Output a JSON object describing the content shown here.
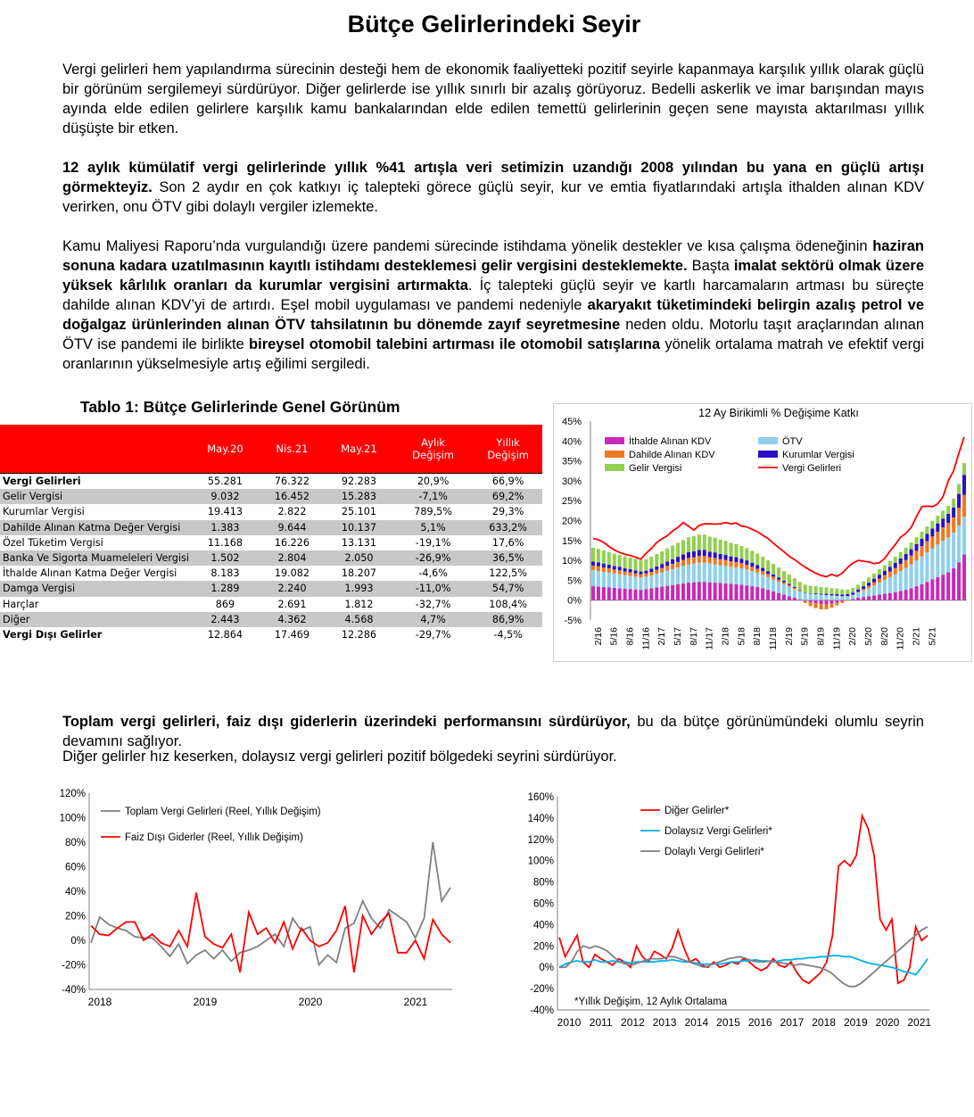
{
  "page_title": "Bütçe Gelirlerindeki Seyir",
  "paragraphs": {
    "p1": "Vergi gelirleri hem yapılandırma sürecinin desteği hem de ekonomik faaliyetteki pozitif seyirle kapanmaya karşılık yıllık olarak güçlü bir görünüm sergilemeyi sürdürüyor. Diğer gelirlerde ise yıllık sınırlı bir azalış görüyoruz. Bedelli askerlik ve imar barışından mayıs ayında elde edilen gelirlere karşılık kamu bankalarından elde edilen temettü gelirlerinin geçen sene mayısta aktarılması yıllık düşüşte bir etken.",
    "p2_bold": "12 aylık kümülatif vergi gelirlerinde yıllık %41 artışla veri setimizin uzandığı 2008 yılından bu yana en güçlü artışı görmekteyiz.",
    "p2_rest": " Son 2 aydır en çok katkıyı iç talepteki görece güçlü seyir, kur ve emtia fiyatlarındaki artışla ithalden alınan KDV verirken, onu ÖTV gibi dolaylı vergiler izlemekte.",
    "p3_a": "Kamu Maliyesi Raporu’nda vurgulandığı üzere pandemi sürecinde istihdama yönelik destekler ve kısa çalışma ödeneğinin ",
    "p3_b": "haziran sonuna kadara uzatılmasının kayıtlı istihdamı desteklemesi gelir vergisini desteklemekte.",
    "p3_c": " Başta ",
    "p3_d": "imalat sektörü olmak üzere yüksek kârlılık oranları da kurumlar vergisini artırmakta",
    "p3_e": ". İç talepteki güçlü seyir ve kartlı harcamaların artması bu süreçte dahilde alınan KDV’yi de artırdı. Eşel mobil uygulaması ve pandemi nedeniyle ",
    "p3_f": "akaryakıt tüketimindeki belirgin azalış petrol ve doğalgaz ürünlerinden alınan ÖTV tahsilatının bu dönemde zayıf seyretmesine",
    "p3_g": " neden oldu. Motorlu taşıt araçlarından alınan ÖTV ise pandemi ile birlikte ",
    "p3_h": "bireysel otomobil talebini artırması ile otomobil satışlarına",
    "p3_i": " yönelik ortalama matrah ve efektif vergi oranlarının yükselmesiyle artış eğilimi sergiledi.",
    "p4_bold": "Toplam vergi gelirleri, faiz dışı giderlerin üzerindeki performansını sürdürüyor,",
    "p4_rest": " bu da bütçe görünümündeki olumlu seyrin devamını sağlıyor.",
    "p5": "Diğer gelirler hız keserken, dolaysız vergi gelirleri pozitif bölgedeki seyrini sürdürüyor."
  },
  "table": {
    "title": "Tablo 1: Bütçe Gelirlerinde Genel Görünüm",
    "headers": [
      "",
      "May.20",
      "Nis.21",
      "May.21",
      "Aylık Değişim",
      "Yıllık Değişim"
    ],
    "rows": [
      [
        "Vergi Gelirleri",
        "55.281",
        "76.322",
        "92.283",
        "20,9%",
        "66,9%"
      ],
      [
        "Gelir Vergisi",
        "9.032",
        "16.452",
        "15.283",
        "-7,1%",
        "69,2%"
      ],
      [
        "Kurumlar Vergisi",
        "19.413",
        "2.822",
        "25.101",
        "789,5%",
        "29,3%"
      ],
      [
        "Dahilde Alınan Katma Değer Vergisi",
        "1.383",
        "9.644",
        "10.137",
        "5,1%",
        "633,2%"
      ],
      [
        "Özel Tüketim Vergisi",
        "11.168",
        "16.226",
        "13.131",
        "-19,1%",
        "17,6%"
      ],
      [
        "Banka Ve Sigorta Muameleleri Vergisi",
        "1.502",
        "2.804",
        "2.050",
        "-26,9%",
        "36,5%"
      ],
      [
        "İthalde Alınan Katma Değer Vergisi",
        "8.183",
        "19.082",
        "18.207",
        "-4,6%",
        "122,5%"
      ],
      [
        "Damga Vergisi",
        "1.289",
        "2.240",
        "1.993",
        "-11,0%",
        "54,7%"
      ],
      [
        "Harçlar",
        "869",
        "2.691",
        "1.812",
        "-32,7%",
        "108,4%"
      ],
      [
        "Diğer",
        "2.443",
        "4.362",
        "4.568",
        "4,7%",
        "86,9%"
      ],
      [
        "Vergi Dışı Gelirler",
        "12.864",
        "17.469",
        "12.286",
        "-29,7%",
        "-4,5%"
      ]
    ]
  },
  "chart_data": [
    {
      "type": "bar",
      "title": "12 Ay Birikimli % Değişime Katkı",
      "ylim": [
        -5,
        45
      ],
      "ytick_labels": [
        "45%",
        "40%",
        "35%",
        "30%",
        "25%",
        "20%",
        "15%",
        "10%",
        "5%",
        "0%",
        "-5%"
      ],
      "xtick_labels": [
        "2/16",
        "5/16",
        "8/16",
        "11/16",
        "2/17",
        "5/17",
        "8/17",
        "11/17",
        "2/18",
        "5/18",
        "8/18",
        "11/18",
        "2/19",
        "5/19",
        "8/19",
        "11/19",
        "2/20",
        "5/20",
        "8/20",
        "11/20",
        "2/21",
        "5/21"
      ],
      "legend": [
        "İthalde Alınan KDV",
        "ÖTV",
        "Dahilde Alınan KDV",
        "Kurumlar Vergisi",
        "Gelir Vergisi",
        "Vergi Gelirleri"
      ],
      "series": [
        {
          "name": "İthalde Alınan KDV",
          "color": "#c72ab8",
          "values": [
            3.5,
            3.4,
            3.3,
            3.2,
            3.1,
            3,
            2.9,
            2.8,
            2.7,
            2.6,
            2.8,
            3,
            3.2,
            3.4,
            3.6,
            3.8,
            4,
            4.2,
            4.4,
            4.5,
            4.6,
            4.6,
            4.5,
            4.4,
            4.3,
            4.2,
            4.1,
            4,
            3.9,
            3.7,
            3.5,
            3.3,
            3,
            2.6,
            2.2,
            1.8,
            1.4,
            1,
            0.6,
            0.2,
            -0.2,
            -0.5,
            -0.8,
            -1,
            -1.1,
            -0.9,
            -0.6,
            -0.3,
            0,
            0.3,
            0.6,
            0.8,
            1,
            1.2,
            1.4,
            1.6,
            1.8,
            2,
            2.3,
            2.6,
            3,
            3.5,
            4,
            4.6,
            5.2,
            5.8,
            6.4,
            7,
            8,
            9.5,
            11.5
          ]
        },
        {
          "name": "ÖTV",
          "color": "#8fd0ec",
          "values": [
            4,
            3.9,
            3.8,
            3.7,
            3.6,
            3.5,
            3.4,
            3.3,
            3.2,
            3.1,
            3.1,
            3.2,
            3.4,
            3.6,
            3.8,
            4,
            4.2,
            4.4,
            4.6,
            4.7,
            4.8,
            4.8,
            4.7,
            4.6,
            4.5,
            4.4,
            4.3,
            4.2,
            4.1,
            4,
            3.8,
            3.6,
            3.4,
            3.2,
            3,
            2.8,
            2.6,
            2.4,
            2.2,
            2,
            1.8,
            1.6,
            1.5,
            1.4,
            1.3,
            1.2,
            1.1,
            1,
            1,
            1.1,
            1.3,
            1.6,
            2,
            2.5,
            3,
            3.5,
            4,
            4.5,
            5,
            5.5,
            6,
            6.5,
            7,
            7.4,
            7.8,
            8.2,
            8.5,
            8.8,
            9,
            9.2,
            9.5
          ]
        },
        {
          "name": "Dahilde Alınan KDV",
          "color": "#f07820",
          "values": [
            1.2,
            1.2,
            1.1,
            1.1,
            1,
            1,
            0.9,
            0.9,
            0.8,
            0.8,
            0.8,
            0.9,
            1,
            1.1,
            1.2,
            1.3,
            1.4,
            1.5,
            1.6,
            1.6,
            1.7,
            1.7,
            1.6,
            1.6,
            1.5,
            1.5,
            1.4,
            1.4,
            1.3,
            1.2,
            1.1,
            1,
            0.9,
            0.8,
            0.7,
            0.6,
            0.5,
            0.4,
            0.3,
            0.2,
            -0.5,
            -1,
            -1.2,
            -1.3,
            -1.2,
            -1,
            -0.7,
            -0.4,
            -0.2,
            0,
            0.2,
            0.4,
            0.6,
            0.8,
            1,
            1.2,
            1.4,
            1.6,
            1.8,
            2,
            2.2,
            2.4,
            2.6,
            2.8,
            3,
            3.2,
            3.4,
            3.6,
            3.8,
            4.5,
            5.5
          ]
        },
        {
          "name": "Kurumlar Vergisi",
          "color": "#2a10c8",
          "values": [
            1,
            1,
            1,
            0.9,
            0.9,
            0.9,
            0.8,
            0.8,
            0.8,
            0.7,
            0.7,
            0.8,
            0.9,
            1,
            1.1,
            1.2,
            1.3,
            1.4,
            1.5,
            1.5,
            1.5,
            1.5,
            1.4,
            1.4,
            1.3,
            1.3,
            1.2,
            1.2,
            1.1,
            1.1,
            1,
            0.9,
            0.8,
            0.7,
            0.6,
            0.5,
            0.4,
            0.3,
            0.2,
            0.1,
            0.1,
            0.1,
            0.2,
            0.2,
            0.3,
            0.3,
            0.4,
            0.4,
            0.5,
            0.5,
            0.6,
            0.7,
            0.8,
            0.9,
            1,
            1.1,
            1.2,
            1.3,
            1.4,
            1.5,
            1.6,
            1.7,
            1.8,
            1.9,
            2,
            2.1,
            2.2,
            2.3,
            2.5,
            3.5,
            5
          ]
        },
        {
          "name": "Gelir Vergisi",
          "color": "#92d050",
          "values": [
            3.5,
            3.4,
            3.3,
            3.2,
            3.1,
            3,
            3,
            2.9,
            2.9,
            2.8,
            2.9,
            3,
            3.1,
            3.2,
            3.3,
            3.4,
            3.5,
            3.6,
            3.7,
            3.8,
            3.9,
            3.9,
            3.8,
            3.7,
            3.6,
            3.5,
            3.4,
            3.3,
            3.2,
            3.1,
            3,
            2.9,
            2.8,
            2.7,
            2.6,
            2.5,
            2.4,
            2.3,
            2.2,
            2.1,
            2,
            1.9,
            1.8,
            1.7,
            1.6,
            1.5,
            1.4,
            1.3,
            1.2,
            1.2,
            1.2,
            1.2,
            1.3,
            1.3,
            1.4,
            1.4,
            1.5,
            1.5,
            1.6,
            1.6,
            1.7,
            1.7,
            1.8,
            1.8,
            1.9,
            1.9,
            2,
            2,
            2.2,
            2.5,
            3
          ]
        },
        {
          "name": "Vergi Gelirleri",
          "color": "#ff0000",
          "values": [
            15.5,
            15.2,
            14.5,
            13.5,
            12.6,
            12,
            11.5,
            11.2,
            10.8,
            10.3,
            11.8,
            13,
            14.5,
            15.4,
            16.2,
            17.4,
            18.3,
            19.5,
            18.6,
            17.6,
            18.8,
            19.2,
            19.2,
            19.1,
            19.2,
            19.5,
            19.2,
            19.4,
            18.6,
            18.4,
            17.8,
            17.2,
            16.3,
            15.5,
            14.3,
            13.2,
            12.2,
            11,
            10.2,
            9.2,
            8.3,
            7.5,
            6.8,
            6.2,
            5.9,
            6.5,
            6,
            6.8,
            8.2,
            9.3,
            10,
            9.8,
            9.6,
            9.2,
            9.4,
            10.5,
            12.3,
            14,
            15.8,
            16.8,
            18.3,
            21,
            23.5,
            23.6,
            23.5,
            24.2,
            26,
            30,
            32.5,
            37,
            41
          ]
        }
      ]
    },
    {
      "type": "line",
      "ylim": [
        -40,
        120
      ],
      "ytick_labels": [
        "120%",
        "100%",
        "80%",
        "60%",
        "40%",
        "20%",
        "0%",
        "-20%",
        "-40%"
      ],
      "xtick_labels": [
        "2018",
        "2019",
        "2020",
        "2021"
      ],
      "legend": [
        "Toplam Vergi Gelirleri (Reel, Yıllık Değişim)",
        "Faiz Dışı Giderler (Reel, Yıllık Değişim)"
      ],
      "series": [
        {
          "name": "Toplam Vergi Gelirleri (Reel, Yıllık Değişim)",
          "color": "#808080",
          "values": [
            -2,
            19,
            13,
            10,
            8,
            3,
            2,
            2,
            -5,
            -13,
            -3,
            -19,
            -12,
            -8,
            -15,
            -8,
            -17,
            -10,
            -8,
            -5,
            0,
            5,
            -5,
            18,
            8,
            11,
            -20,
            -12,
            -18,
            10,
            14,
            32,
            18,
            10,
            25,
            20,
            15,
            2,
            18,
            80,
            32,
            43
          ]
        },
        {
          "name": "Faiz Dışı Giderler (Reel, Yıllık Değişim)",
          "color": "#ff0000",
          "values": [
            12,
            5,
            4,
            10,
            15,
            15,
            0,
            5,
            -2,
            -5,
            8,
            -5,
            39,
            3,
            -3,
            -6,
            5,
            -26,
            23,
            5,
            10,
            -2,
            15,
            -7,
            10,
            0,
            -5,
            -2,
            8,
            28,
            -26,
            20,
            5,
            15,
            22,
            -10,
            -10,
            0,
            -15,
            17,
            5,
            -2
          ]
        }
      ]
    },
    {
      "type": "line",
      "ylim": [
        -40,
        160
      ],
      "ytick_labels": [
        "160%",
        "140%",
        "120%",
        "100%",
        "80%",
        "60%",
        "40%",
        "20%",
        "0%",
        "-20%",
        "-40%"
      ],
      "xtick_labels": [
        "2010",
        "2011",
        "2012",
        "2013",
        "2014",
        "2015",
        "2016",
        "2017",
        "2018",
        "2019",
        "2020",
        "2021"
      ],
      "legend": [
        "Diğer Gelirler*",
        "Dolaysız Vergi Gelirleri*",
        "Dolaylı Vergi Gelirleri*"
      ],
      "annotation": "*Yıllık Değişim, 12 Aylık Ortalama",
      "series": [
        {
          "name": "Diğer Gelirler*",
          "color": "#ff0000",
          "values": [
            28,
            10,
            20,
            30,
            5,
            0,
            12,
            8,
            5,
            2,
            8,
            5,
            0,
            20,
            10,
            5,
            15,
            12,
            8,
            18,
            35,
            18,
            5,
            8,
            2,
            0,
            5,
            0,
            2,
            5,
            3,
            8,
            5,
            0,
            -3,
            0,
            8,
            2,
            0,
            5,
            -5,
            -12,
            -15,
            -10,
            -5,
            5,
            30,
            95,
            100,
            95,
            105,
            142,
            130,
            105,
            45,
            35,
            45,
            -15,
            -12,
            0,
            38,
            25,
            30
          ]
        },
        {
          "name": "Dolaysız Vergi Gelirleri*",
          "color": "#00b0f0",
          "values": [
            0,
            3,
            5,
            6,
            5,
            5,
            7,
            5,
            5,
            6,
            5,
            5,
            4,
            5,
            5,
            5,
            5,
            6,
            6,
            7,
            6,
            5,
            5,
            4,
            3,
            3,
            3,
            3,
            4,
            5,
            5,
            6,
            6,
            7,
            6,
            6,
            5,
            6,
            7,
            7,
            8,
            8,
            9,
            9,
            10,
            10,
            11,
            11,
            10,
            10,
            8,
            6,
            4,
            3,
            2,
            1,
            0,
            -2,
            -4,
            -5,
            -7,
            0,
            8
          ]
        },
        {
          "name": "Dolaylı Vergi Gelirleri*",
          "color": "#808080",
          "values": [
            0,
            0,
            5,
            15,
            20,
            18,
            20,
            18,
            15,
            10,
            5,
            3,
            2,
            4,
            6,
            8,
            8,
            8,
            10,
            10,
            8,
            6,
            4,
            2,
            0,
            2,
            4,
            6,
            8,
            9,
            10,
            8,
            6,
            5,
            5,
            6,
            5,
            4,
            3,
            2,
            3,
            2,
            1,
            0,
            -2,
            -5,
            -10,
            -15,
            -18,
            -18,
            -15,
            -10,
            -5,
            0,
            5,
            10,
            15,
            20,
            25,
            30,
            35,
            38
          ]
        }
      ]
    }
  ]
}
